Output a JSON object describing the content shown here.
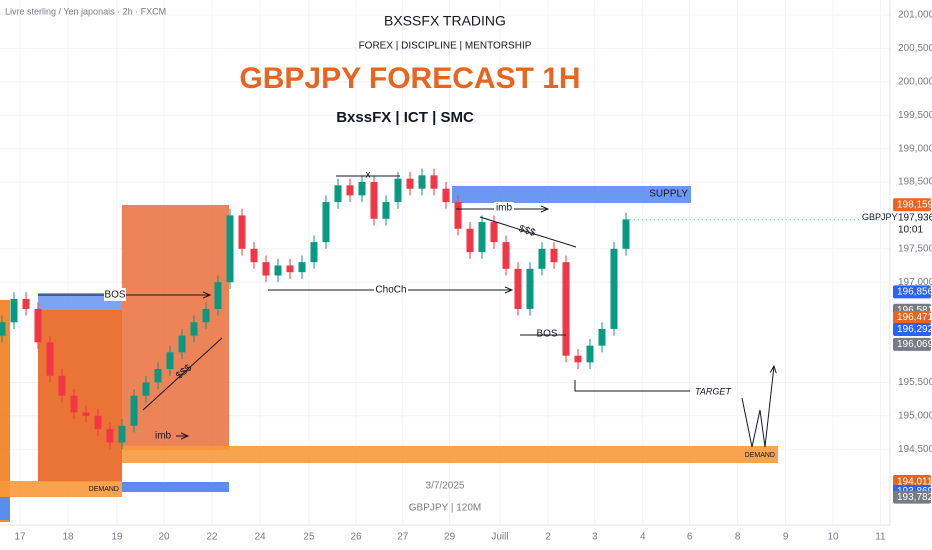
{
  "chart_data": {
    "type": "candlestick",
    "header": "Livre sterling / Yen japonais · 2h · FXCM",
    "title": "BXSSFX TRADING",
    "subtitle": "FOREX | DISCIPLINE | MENTORSHIP",
    "headline": "GBPJPY FORECAST 1H",
    "tagline": "BxssFX | ICT | SMC",
    "watermark_date": "3/7/2025",
    "watermark_symbol": "GBPJPY | 120M",
    "up_color": "#089981",
    "down_color": "#f23645",
    "grid": true,
    "x": [
      0,
      1,
      2,
      3,
      4,
      5,
      6,
      7,
      8,
      9,
      10,
      11,
      12,
      13,
      14,
      15,
      16,
      17,
      18,
      19,
      20,
      21,
      22,
      23,
      24,
      25,
      26,
      27,
      28,
      29,
      30,
      31,
      32,
      33,
      34,
      35,
      36,
      37,
      38,
      39,
      40,
      41,
      42,
      43,
      44,
      45,
      46,
      47,
      48,
      49,
      50,
      51,
      52
    ],
    "open": [
      196.2,
      196.4,
      196.75,
      196.6,
      196.1,
      195.6,
      195.3,
      195.05,
      195.0,
      194.8,
      194.6,
      194.85,
      195.3,
      195.5,
      195.7,
      195.95,
      196.2,
      196.4,
      196.6,
      197.0,
      198.0,
      197.5,
      197.3,
      197.1,
      197.25,
      197.15,
      197.3,
      197.6,
      198.2,
      198.45,
      198.3,
      198.5,
      197.95,
      198.2,
      198.55,
      198.4,
      198.6,
      198.4,
      198.2,
      197.8,
      197.45,
      197.9,
      197.6,
      197.2,
      196.6,
      197.2,
      197.5,
      197.3,
      195.9,
      195.8,
      196.05,
      196.3,
      197.5
    ],
    "high": [
      196.5,
      196.85,
      196.85,
      196.7,
      196.2,
      195.7,
      195.4,
      195.15,
      195.1,
      194.9,
      194.95,
      195.4,
      195.6,
      195.8,
      196.05,
      196.3,
      196.5,
      196.7,
      197.1,
      198.1,
      198.1,
      197.6,
      197.4,
      197.35,
      197.35,
      197.4,
      197.7,
      198.3,
      198.55,
      198.55,
      198.6,
      198.6,
      198.3,
      198.65,
      198.65,
      198.7,
      198.7,
      198.5,
      198.3,
      197.9,
      198.0,
      198.0,
      197.7,
      197.3,
      197.3,
      197.6,
      197.6,
      197.4,
      196.0,
      196.15,
      196.4,
      197.6,
      198.04
    ],
    "low": [
      196.1,
      196.3,
      196.5,
      196.0,
      195.5,
      195.2,
      194.95,
      194.9,
      194.7,
      194.5,
      194.5,
      194.75,
      195.2,
      195.4,
      195.6,
      195.85,
      196.1,
      196.3,
      196.5,
      196.9,
      197.4,
      197.2,
      197.0,
      197.0,
      197.05,
      197.05,
      197.2,
      197.5,
      198.1,
      198.2,
      198.2,
      197.85,
      197.85,
      198.1,
      198.3,
      198.3,
      198.3,
      198.1,
      197.7,
      197.35,
      197.35,
      197.5,
      197.1,
      196.5,
      196.5,
      197.1,
      197.2,
      195.8,
      195.7,
      195.7,
      195.95,
      196.2,
      197.4
    ],
    "close": [
      196.4,
      196.75,
      196.6,
      196.1,
      195.6,
      195.3,
      195.05,
      195.0,
      194.8,
      194.6,
      194.85,
      195.3,
      195.5,
      195.7,
      195.95,
      196.2,
      196.4,
      196.6,
      197.0,
      198.0,
      197.5,
      197.3,
      197.1,
      197.25,
      197.15,
      197.3,
      197.6,
      198.2,
      198.45,
      198.3,
      198.5,
      197.95,
      198.2,
      198.55,
      198.4,
      198.6,
      198.4,
      198.2,
      197.8,
      197.45,
      197.9,
      197.6,
      197.2,
      196.6,
      197.2,
      197.5,
      197.3,
      195.9,
      195.8,
      196.05,
      196.3,
      197.5,
      197.94
    ],
    "xlim": [
      -0.1667,
      74
    ],
    "xticks": [
      {
        "value": 1.5,
        "label": "17"
      },
      {
        "value": 5.5,
        "label": "18"
      },
      {
        "value": 9.58,
        "label": "19"
      },
      {
        "value": 13.5,
        "label": "20"
      },
      {
        "value": 17.5,
        "label": "22"
      },
      {
        "value": 21.5,
        "label": "24"
      },
      {
        "value": 25.58,
        "label": "25"
      },
      {
        "value": 29.5,
        "label": "26"
      },
      {
        "value": 33.4,
        "label": "27"
      },
      {
        "value": 37.3,
        "label": "29"
      },
      {
        "value": 41.5,
        "label": "Juill"
      },
      {
        "value": 45.5,
        "label": "2"
      },
      {
        "value": 49.4,
        "label": "3"
      },
      {
        "value": 53.4,
        "label": "4"
      },
      {
        "value": 57.3,
        "label": "6"
      },
      {
        "value": 61.3,
        "label": "8"
      },
      {
        "value": 65.3,
        "label": "9"
      },
      {
        "value": 69.25,
        "label": "10"
      },
      {
        "value": 73.2,
        "label": "11"
      }
    ],
    "ylim": [
      193.365,
      201.225
    ],
    "yticks": [
      {
        "value": 201.0,
        "label": "201,000"
      },
      {
        "value": 200.5,
        "label": "200,500"
      },
      {
        "value": 200.0,
        "label": "200,000"
      },
      {
        "value": 199.5,
        "label": "199,500"
      },
      {
        "value": 199.0,
        "label": "199,000"
      },
      {
        "value": 198.5,
        "label": "198,500"
      },
      {
        "value": 197.5,
        "label": "197,500"
      },
      {
        "value": 197.0,
        "label": "197,000"
      },
      {
        "value": 195.5,
        "label": "195,500"
      },
      {
        "value": 195.0,
        "label": "195,000"
      },
      {
        "value": 194.5,
        "label": "194,500"
      }
    ],
    "price_labels": [
      {
        "value": 198.159,
        "label": "198,159",
        "color": "#e8651f"
      },
      {
        "value": 196.856,
        "label": "196,856",
        "color": "#2962ff"
      },
      {
        "value": 196.581,
        "label": "196,581",
        "color": "#787b86"
      },
      {
        "value": 196.471,
        "label": "196,471",
        "color": "#e8651f"
      },
      {
        "value": 196.292,
        "label": "196,292",
        "color": "#2962ff"
      },
      {
        "value": 196.069,
        "label": "196,069",
        "color": "#787b86"
      },
      {
        "value": 194.017,
        "label": "194,017",
        "color": "#787b86"
      },
      {
        "value": 194.011,
        "label": "194,011",
        "color": "#e8651f"
      },
      {
        "value": 193.869,
        "label": "193,869",
        "color": "#2962ff"
      },
      {
        "value": 193.782,
        "label": "193,782",
        "color": "#787b86"
      }
    ],
    "current": {
      "symbol": "GBPJPY",
      "value": 197.936,
      "label": "197,936",
      "time": "10:01"
    },
    "annotations": {
      "bos_left": "BOS",
      "choch": "ChoCh",
      "imb_top": "imb",
      "liq_top": "$$$",
      "x_mark": "x",
      "supply": "SUPPLY",
      "demand_left": "DEMAND",
      "demand_right": "DEMAND",
      "target": "TARGET",
      "imb_low": "imb",
      "liq_low": "$$$",
      "bos_right": "BOS"
    }
  }
}
